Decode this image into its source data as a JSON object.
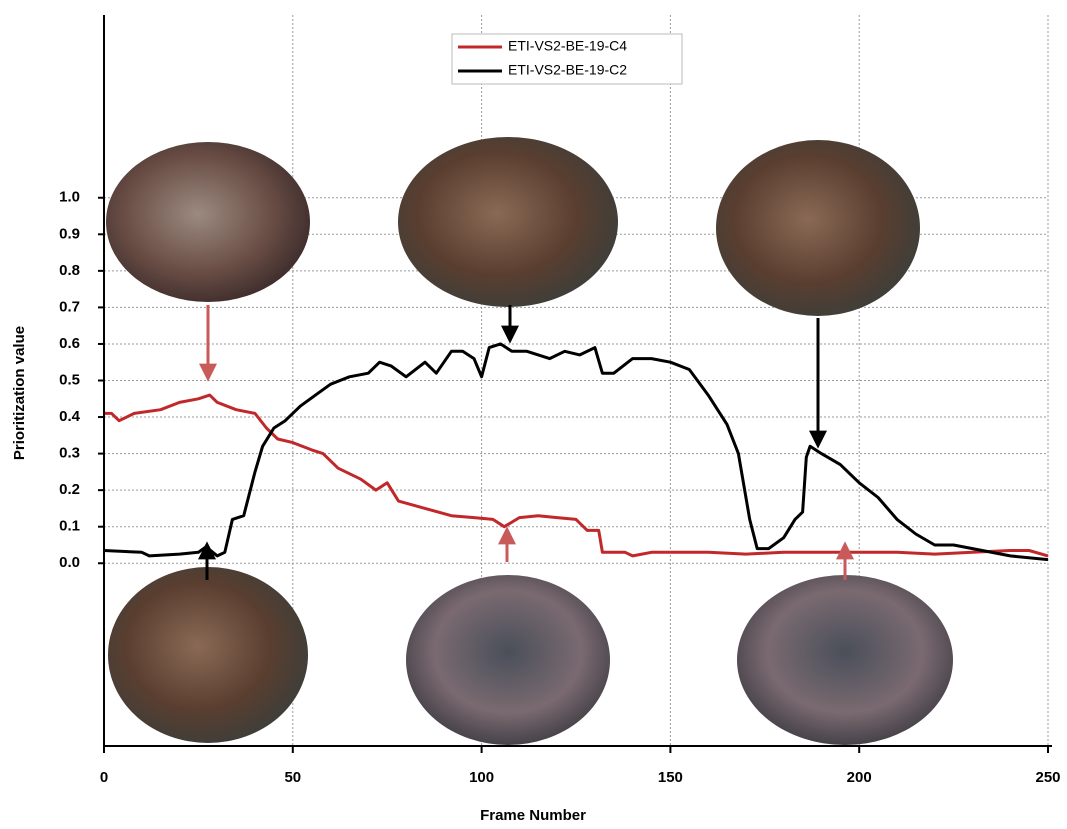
{
  "chart_data": {
    "type": "line",
    "x_label": "Frame Number",
    "y_label": "Prioritization value",
    "xlim": [
      0,
      250
    ],
    "ylim": [
      -0.5,
      1.5
    ],
    "xticks": [
      0,
      50,
      100,
      150,
      200,
      250
    ],
    "yticks": [
      {
        "value": 0,
        "label": "0.0"
      },
      0.1,
      0.2,
      0.3,
      0.4,
      0.5,
      0.6,
      0.7,
      0.8,
      0.9,
      {
        "value": 1,
        "label": "1.0"
      }
    ],
    "grid": true,
    "legend": "top",
    "series": [
      {
        "name": "ETI-VS2-BE-19-C4",
        "color": "#c0282a",
        "x": [
          0,
          2,
          4,
          8,
          15,
          20,
          25,
          28,
          30,
          35,
          40,
          43,
          46,
          50,
          55,
          58,
          62,
          68,
          72,
          75,
          78,
          85,
          92,
          98,
          103,
          106,
          110,
          115,
          120,
          125,
          128,
          131,
          132,
          138,
          140,
          145,
          150,
          160,
          170,
          180,
          190,
          200,
          210,
          220,
          230,
          240,
          245,
          250
        ],
        "values": [
          0.41,
          0.41,
          0.39,
          0.41,
          0.42,
          0.44,
          0.45,
          0.46,
          0.44,
          0.42,
          0.41,
          0.37,
          0.34,
          0.33,
          0.31,
          0.3,
          0.26,
          0.23,
          0.2,
          0.22,
          0.17,
          0.15,
          0.13,
          0.125,
          0.12,
          0.1,
          0.125,
          0.13,
          0.125,
          0.12,
          0.09,
          0.09,
          0.03,
          0.03,
          0.02,
          0.03,
          0.03,
          0.03,
          0.025,
          0.03,
          0.03,
          0.03,
          0.03,
          0.025,
          0.03,
          0.035,
          0.035,
          0.02
        ]
      },
      {
        "name": "ETI-VS2-BE-19-C2",
        "color": "#000000",
        "x": [
          0,
          10,
          12,
          20,
          25,
          27,
          30,
          32,
          34,
          37,
          40,
          42,
          45,
          48,
          52,
          56,
          60,
          65,
          70,
          73,
          76,
          80,
          85,
          88,
          92,
          95,
          98,
          100,
          102,
          105,
          108,
          112,
          118,
          122,
          126,
          130,
          132,
          135,
          140,
          145,
          150,
          155,
          160,
          165,
          168,
          171,
          173,
          176,
          180,
          183,
          185,
          186,
          187,
          190,
          195,
          200,
          205,
          210,
          215,
          220,
          225,
          230,
          240,
          250
        ],
        "values": [
          0.035,
          0.03,
          0.02,
          0.025,
          0.03,
          0.045,
          0.02,
          0.03,
          0.12,
          0.13,
          0.25,
          0.32,
          0.37,
          0.39,
          0.43,
          0.46,
          0.49,
          0.51,
          0.52,
          0.55,
          0.54,
          0.51,
          0.55,
          0.52,
          0.58,
          0.58,
          0.56,
          0.51,
          0.59,
          0.6,
          0.58,
          0.58,
          0.56,
          0.58,
          0.57,
          0.59,
          0.52,
          0.52,
          0.56,
          0.56,
          0.55,
          0.53,
          0.46,
          0.38,
          0.3,
          0.12,
          0.04,
          0.04,
          0.07,
          0.12,
          0.14,
          0.29,
          0.32,
          0.3,
          0.27,
          0.22,
          0.18,
          0.12,
          0.08,
          0.05,
          0.05,
          0.04,
          0.02,
          0.01
        ]
      }
    ]
  }
}
